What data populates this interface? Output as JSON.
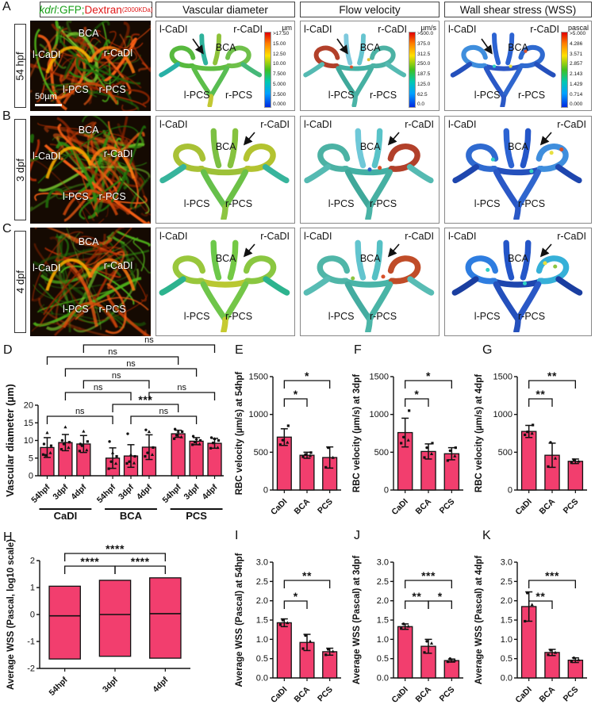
{
  "figure": {
    "header": {
      "fluor_title": {
        "kdrl": "kdrl",
        "gfp": ":GFP;",
        "dextran": "Dextran",
        "kda": "(2000KDa)"
      },
      "columns": [
        "Vascular diameter",
        "Flow velocity",
        "Wall shear stress (WSS)"
      ]
    },
    "rows": [
      {
        "letter": "A",
        "stage": "54 hpf",
        "scalebar": "50µm"
      },
      {
        "letter": "B",
        "stage": "3 dpf"
      },
      {
        "letter": "C",
        "stage": "4 dpf"
      }
    ],
    "vessel_labels": {
      "l_cadi": "l-CaDI",
      "r_cadi": "r-CaDI",
      "bca": "BCA",
      "l_pcs": "l-PCS",
      "r_pcs": "r-PCS"
    },
    "colorbars": [
      {
        "unit": "µm",
        "ticks": [
          ">17.50",
          "15.00",
          "12.50",
          "10.00",
          "7.500",
          "5.000",
          "2.500",
          "0.000"
        ]
      },
      {
        "unit": "µm/s",
        "ticks": [
          ">500.0",
          "375.0",
          "312.5",
          "250.0",
          "187.5",
          "125.0",
          "62.5",
          "0.0"
        ]
      },
      {
        "unit": "pascal",
        "ticks": [
          ">5.000",
          "4.286",
          "3.571",
          "2.857",
          "2.143",
          "1.429",
          "0.714",
          "0.000"
        ]
      }
    ]
  },
  "colors": {
    "bar": "#F23E6E",
    "axis": "#111111",
    "gfp_green": "#18a018",
    "dextran_red": "#e01818"
  },
  "chart_data": [
    {
      "id": "D",
      "type": "bar",
      "ylabel": "Vascular diameter (µm)",
      "categories": [
        "54hpf",
        "3dpf",
        "4dpf",
        "54hpf",
        "3dpf",
        "4dpf",
        "54hpf",
        "3dpf",
        "4dpf"
      ],
      "groups": [
        {
          "label": "CaDI",
          "from": 0,
          "to": 2
        },
        {
          "label": "BCA",
          "from": 3,
          "to": 5
        },
        {
          "label": "PCS",
          "from": 6,
          "to": 8
        }
      ],
      "values": [
        8.0,
        9.4,
        9.0,
        5.0,
        5.6,
        8.1,
        11.9,
        9.8,
        9.2
      ],
      "errors": [
        2.8,
        2.3,
        2.4,
        2.9,
        3.2,
        3.5,
        1.0,
        1.0,
        1.4
      ],
      "points": [
        [
          6.0,
          6.5,
          5.8,
          8.5,
          12.2,
          9.0
        ],
        [
          7.5,
          8.0,
          9.0,
          9.5,
          13.8,
          10.0
        ],
        [
          7.0,
          7.3,
          8.5,
          9.7,
          12.6,
          9.0
        ],
        [
          2.0,
          3.5,
          4.0,
          5.5,
          6.5,
          9.7
        ],
        [
          3.5,
          3.6,
          4.0,
          5.5,
          6.0,
          11.9
        ],
        [
          5.5,
          6.0,
          6.5,
          8.0,
          12.5,
          13.0
        ],
        [
          10.5,
          11.0,
          11.5,
          12.5,
          12.6,
          13.2
        ],
        [
          8.8,
          9.0,
          9.5,
          10.0,
          10.5,
          11.2
        ],
        [
          7.8,
          8.0,
          9.3,
          10.0,
          10.5,
          10.8
        ]
      ],
      "ylim": [
        0,
        20
      ],
      "yticks": [
        0,
        5,
        10,
        15,
        20
      ],
      "ytick_labels": [
        "0",
        "5",
        "10",
        "15",
        "20"
      ],
      "brackets": [
        {
          "a": 0,
          "b": 3,
          "label": "ns",
          "lvl": 0
        },
        {
          "a": 4,
          "b": 7,
          "label": "ns",
          "lvl": 0
        },
        {
          "a": 3,
          "b": 6,
          "label": "***",
          "lvl": 1
        },
        {
          "a": 1,
          "b": 4,
          "label": "ns",
          "lvl": 2
        },
        {
          "a": 5,
          "b": 8,
          "label": "ns",
          "lvl": 2
        },
        {
          "a": 2,
          "b": 5,
          "label": "ns",
          "lvl": 3
        },
        {
          "a": 1,
          "b": 7,
          "label": "ns",
          "lvl": 4
        },
        {
          "a": 0,
          "b": 6,
          "label": "ns",
          "lvl": 5
        },
        {
          "a": 2,
          "b": 8,
          "label": "ns",
          "lvl": 6
        }
      ]
    },
    {
      "id": "E",
      "type": "bar",
      "ylabel": "RBC velocity (µm/s) at 54hpf",
      "categories": [
        "CaDI",
        "BCA",
        "PCS"
      ],
      "values": [
        700,
        460,
        430
      ],
      "errors": [
        110,
        40,
        140
      ],
      "points": [
        [
          600,
          630,
          660,
          850
        ],
        [
          440,
          455,
          470,
          495
        ],
        [
          300,
          430,
          560
        ]
      ],
      "ylim": [
        0,
        1500
      ],
      "yticks": [
        0,
        500,
        1000,
        1500
      ],
      "ytick_labels": [
        "0",
        "500",
        "1000",
        "1500"
      ],
      "brackets": [
        {
          "a": 0,
          "b": 1,
          "label": "*",
          "lvl": 0
        },
        {
          "a": 0,
          "b": 2,
          "label": "*",
          "lvl": 1
        }
      ]
    },
    {
      "id": "F",
      "type": "bar",
      "ylabel": "RBC velocity (µm/s) at 3dpf",
      "categories": [
        "CaDI",
        "BCA",
        "PCS"
      ],
      "values": [
        760,
        510,
        480
      ],
      "errors": [
        190,
        100,
        80
      ],
      "points": [
        [
          620,
          660,
          700,
          1050
        ],
        [
          430,
          480,
          560,
          620
        ],
        [
          390,
          450,
          520,
          560
        ]
      ],
      "ylim": [
        0,
        1500
      ],
      "yticks": [
        0,
        500,
        1000,
        1500
      ],
      "ytick_labels": [
        "0",
        "500",
        "1000",
        "1500"
      ],
      "brackets": [
        {
          "a": 0,
          "b": 1,
          "label": "*",
          "lvl": 0
        },
        {
          "a": 0,
          "b": 2,
          "label": "*",
          "lvl": 1
        }
      ]
    },
    {
      "id": "G",
      "type": "bar",
      "ylabel": "RBC velocity (µm/s) at 4dpf",
      "categories": [
        "CaDI",
        "BCA",
        "PCS"
      ],
      "values": [
        775,
        460,
        380
      ],
      "errors": [
        80,
        160,
        30
      ],
      "points": [
        [
          730,
          750,
          770,
          860
        ],
        [
          310,
          420,
          630
        ],
        [
          360,
          380,
          400
        ]
      ],
      "ylim": [
        0,
        1500
      ],
      "yticks": [
        0,
        500,
        1000,
        1500
      ],
      "ytick_labels": [
        "0",
        "500",
        "1000",
        "1500"
      ],
      "brackets": [
        {
          "a": 0,
          "b": 1,
          "label": "**",
          "lvl": 0
        },
        {
          "a": 0,
          "b": 2,
          "label": "**",
          "lvl": 1
        }
      ]
    },
    {
      "id": "H",
      "type": "floating",
      "ylabel": "Average WSS (Pascal, log10 scale)",
      "categories": [
        "54hpf",
        "3dpf",
        "4dpf"
      ],
      "bars": [
        {
          "min": -1.65,
          "max": 1.05,
          "mid": -0.05
        },
        {
          "min": -1.55,
          "max": 1.27,
          "mid": 0.0
        },
        {
          "min": -1.62,
          "max": 1.36,
          "mid": 0.03
        }
      ],
      "ylim": [
        -2,
        2
      ],
      "yticks": [
        -2,
        -1,
        0,
        1,
        2
      ],
      "ytick_labels": [
        "-2",
        "-1",
        "0",
        "1",
        "2"
      ],
      "brackets": [
        {
          "a": 0,
          "b": 1,
          "label": "****",
          "lvl": 0
        },
        {
          "a": 1,
          "b": 2,
          "label": "****",
          "lvl": 0
        },
        {
          "a": 0,
          "b": 2,
          "label": "****",
          "lvl": 1
        }
      ]
    },
    {
      "id": "I",
      "type": "bar",
      "ylabel": "Average WSS (Pascal) at 54hpf",
      "categories": [
        "CaDI",
        "BCA",
        "PCS"
      ],
      "values": [
        1.43,
        0.92,
        0.68
      ],
      "errors": [
        0.1,
        0.21,
        0.09
      ],
      "points": [
        [
          1.38,
          1.43,
          1.5
        ],
        [
          0.76,
          0.95,
          1.1
        ],
        [
          0.6,
          0.69,
          0.74
        ]
      ],
      "ylim": [
        0,
        3
      ],
      "yticks": [
        0,
        0.5,
        1,
        1.5,
        2,
        2.5,
        3
      ],
      "ytick_labels": [
        "0.0",
        "0.5",
        "1.0",
        "1.5",
        "2.0",
        "2.5",
        "3.0"
      ],
      "brackets": [
        {
          "a": 0,
          "b": 1,
          "label": "*",
          "lvl": 0
        },
        {
          "a": 0,
          "b": 2,
          "label": "**",
          "lvl": 1
        }
      ]
    },
    {
      "id": "J",
      "type": "bar",
      "ylabel": "Average WSS (Pascal) at 3dpf",
      "categories": [
        "CaDI",
        "BCA",
        "PCS"
      ],
      "values": [
        1.33,
        0.82,
        0.45
      ],
      "errors": [
        0.07,
        0.18,
        0.04
      ],
      "points": [
        [
          1.28,
          1.34,
          1.4
        ],
        [
          0.66,
          0.9,
          0.95
        ],
        [
          0.42,
          0.46,
          0.5
        ]
      ],
      "ylim": [
        0,
        3
      ],
      "yticks": [
        0,
        0.5,
        1,
        1.5,
        2,
        2.5,
        3
      ],
      "ytick_labels": [
        "0.0",
        "0.5",
        "1.0",
        "1.5",
        "2.0",
        "2.5",
        "3.0"
      ],
      "brackets": [
        {
          "a": 0,
          "b": 1,
          "label": "**",
          "lvl": 0
        },
        {
          "a": 1,
          "b": 2,
          "label": "*",
          "lvl": 0
        },
        {
          "a": 0,
          "b": 2,
          "label": "***",
          "lvl": 1
        }
      ]
    },
    {
      "id": "K",
      "type": "bar",
      "ylabel": "Average WSS (Pascal) at 4dpf",
      "categories": [
        "CaDI",
        "BCA",
        "PCS"
      ],
      "values": [
        1.85,
        0.66,
        0.46
      ],
      "errors": [
        0.38,
        0.08,
        0.06
      ],
      "points": [
        [
          1.47,
          1.9,
          2.2
        ],
        [
          0.6,
          0.66,
          0.72
        ],
        [
          0.42,
          0.47,
          0.52
        ]
      ],
      "ylim": [
        0,
        3
      ],
      "yticks": [
        0,
        0.5,
        1,
        1.5,
        2,
        2.5,
        3
      ],
      "ytick_labels": [
        "0.0",
        "0.5",
        "1.0",
        "1.5",
        "2.0",
        "2.5",
        "3.0"
      ],
      "brackets": [
        {
          "a": 0,
          "b": 1,
          "label": "**",
          "lvl": 0
        },
        {
          "a": 0,
          "b": 2,
          "label": "***",
          "lvl": 1
        }
      ]
    }
  ]
}
